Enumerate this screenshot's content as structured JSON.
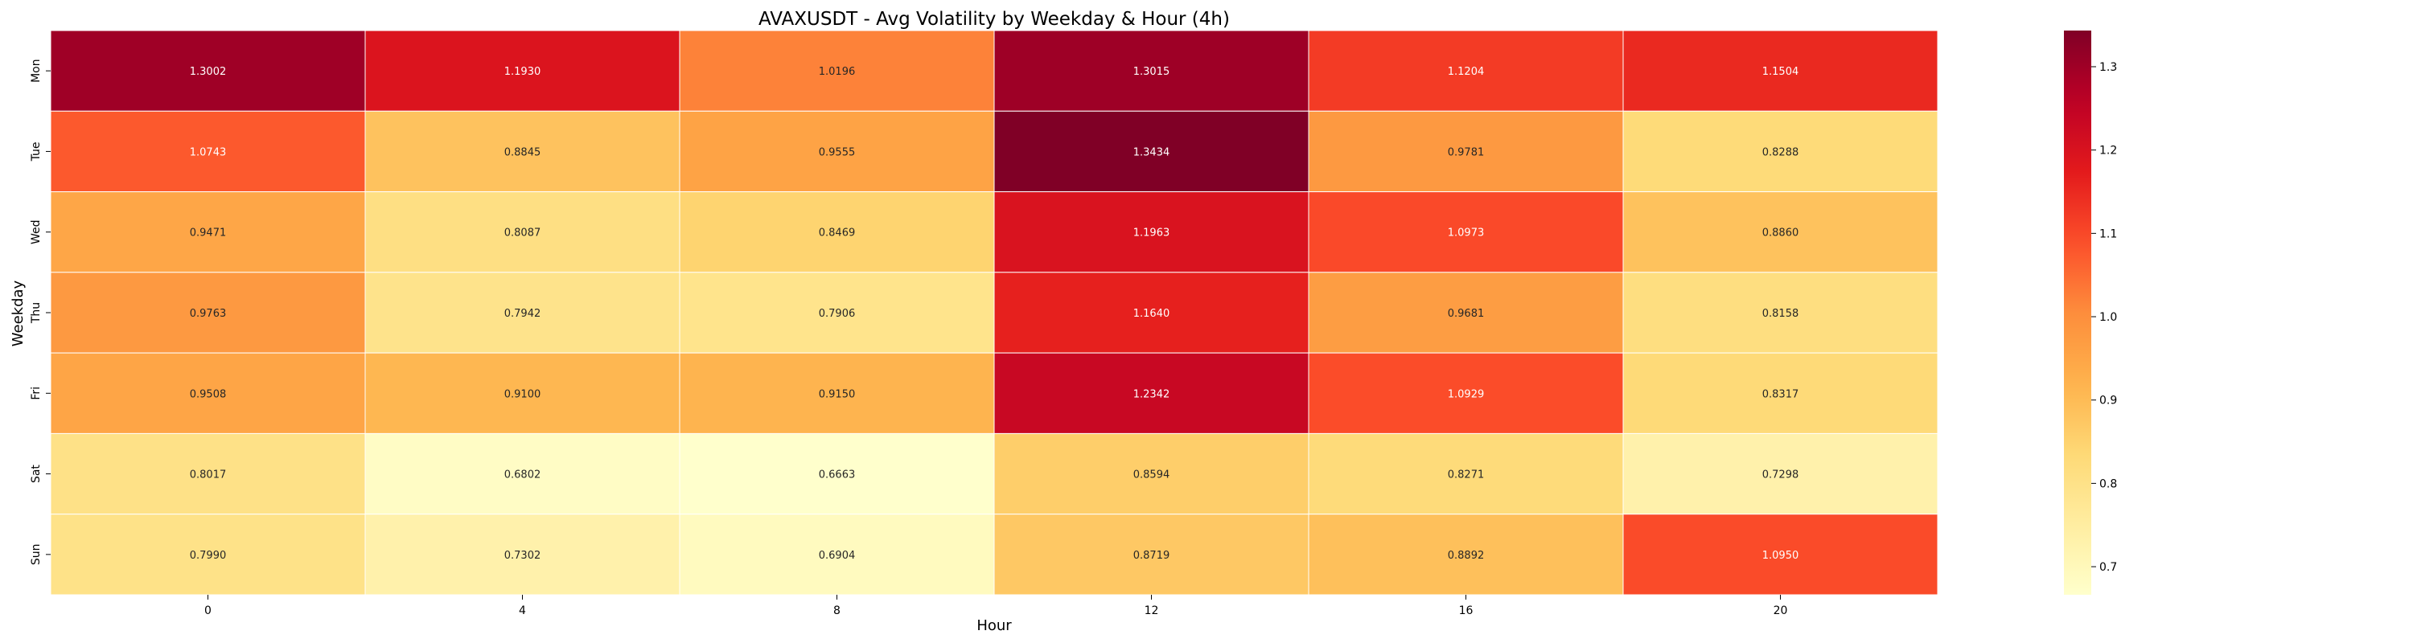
{
  "chart_data": {
    "type": "heatmap",
    "title": "AVAXUSDT - Avg Volatility by Weekday & Hour (4h)",
    "xlabel": "Hour",
    "ylabel": "Weekday",
    "x": [
      "0",
      "4",
      "8",
      "12",
      "16",
      "20"
    ],
    "y": [
      "Mon",
      "Tue",
      "Wed",
      "Thu",
      "Fri",
      "Sat",
      "Sun"
    ],
    "values": [
      [
        1.3002,
        1.193,
        1.0196,
        1.3015,
        1.1204,
        1.1504
      ],
      [
        1.0743,
        0.8845,
        0.9555,
        1.3434,
        0.9781,
        0.8288
      ],
      [
        0.9471,
        0.8087,
        0.8469,
        1.1963,
        1.0973,
        0.886
      ],
      [
        0.9763,
        0.7942,
        0.7906,
        1.164,
        0.9681,
        0.8158
      ],
      [
        0.9508,
        0.91,
        0.915,
        1.2342,
        1.0929,
        0.8317
      ],
      [
        0.8017,
        0.6802,
        0.6663,
        0.8594,
        0.8271,
        0.7298
      ],
      [
        0.799,
        0.7302,
        0.6904,
        0.8719,
        0.8892,
        1.095
      ]
    ],
    "value_labels": [
      [
        "1.3002",
        "1.1930",
        "1.0196",
        "1.3015",
        "1.1204",
        "1.1504"
      ],
      [
        "1.0743",
        "0.8845",
        "0.9555",
        "1.3434",
        "0.9781",
        "0.8288"
      ],
      [
        "0.9471",
        "0.8087",
        "0.8469",
        "1.1963",
        "1.0973",
        "0.8860"
      ],
      [
        "0.9763",
        "0.7942",
        "0.7906",
        "1.1640",
        "0.9681",
        "0.8158"
      ],
      [
        "0.9508",
        "0.9100",
        "0.9150",
        "1.2342",
        "1.0929",
        "0.8317"
      ],
      [
        "0.8017",
        "0.6802",
        "0.6663",
        "0.8594",
        "0.8271",
        "0.7298"
      ],
      [
        "0.7990",
        "0.7302",
        "0.6904",
        "0.8719",
        "0.8892",
        "1.0950"
      ]
    ],
    "colorscale": "YlOrRd",
    "colorbar": {
      "range": [
        0.6663,
        1.3434
      ],
      "ticks": [
        "0.7",
        "0.8",
        "0.9",
        "1.0",
        "1.1",
        "1.2",
        "1.3"
      ]
    },
    "grid": false
  }
}
